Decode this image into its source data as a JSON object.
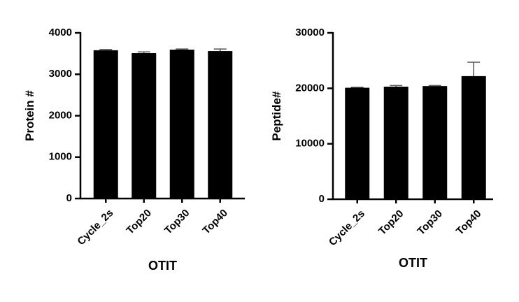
{
  "chart_data": [
    {
      "type": "bar",
      "ylabel": "Protein #",
      "xlabel": "OTIT",
      "categories": [
        "Cycle_2s",
        "Top20",
        "Top30",
        "Top40"
      ],
      "values": [
        3580,
        3510,
        3595,
        3560
      ],
      "errors": [
        20,
        30,
        15,
        50
      ],
      "color": "#000000",
      "ylim": [
        0,
        4000
      ],
      "yticks": [
        0,
        1000,
        2000,
        3000,
        4000
      ]
    },
    {
      "type": "bar",
      "ylabel": "Peptide#",
      "xlabel": "OTIT",
      "categories": [
        "Cycle_2s",
        "Top20",
        "Top30",
        "Top40"
      ],
      "values": [
        20100,
        20300,
        20400,
        22200
      ],
      "errors": [
        100,
        200,
        100,
        2500
      ],
      "color": "#000000",
      "ylim": [
        0,
        30000
      ],
      "yticks": [
        0,
        10000,
        20000,
        30000
      ]
    }
  ]
}
